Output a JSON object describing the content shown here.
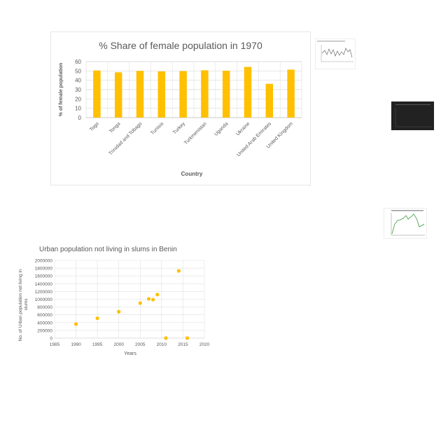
{
  "chart_data": [
    {
      "type": "bar",
      "title": "% Share of female population in 1970",
      "xlabel": "Country",
      "ylabel": "% of female population",
      "ylim": [
        0,
        60
      ],
      "yticks": [
        0,
        10,
        20,
        30,
        40,
        50,
        60
      ],
      "grid": true,
      "categories": [
        "Togo",
        "Tonga",
        "Trinidad and Tobago",
        "Tunisia",
        "Turkey",
        "Turkmenistan",
        "Uganda",
        "Ukraine",
        "United Arab Emirates",
        "United Kingdom"
      ],
      "values": [
        50.5,
        48.5,
        50,
        49.5,
        49.8,
        50.7,
        50.2,
        54.3,
        36.2,
        51.4
      ],
      "bar_color": "#FFC000"
    },
    {
      "type": "scatter",
      "title": "Urban population not living in slums in Benin",
      "xlabel": "Years",
      "ylabel": "No. of Urban population not living in slums",
      "xlim": [
        1985,
        2020
      ],
      "xticks": [
        1985,
        1990,
        1995,
        2000,
        2005,
        2010,
        2015,
        2020
      ],
      "ylim": [
        0,
        2000000
      ],
      "yticks": [
        0,
        200000,
        400000,
        600000,
        800000,
        1000000,
        1200000,
        1400000,
        1600000,
        1800000,
        2000000
      ],
      "grid": true,
      "x": [
        1990,
        1995,
        2000,
        2005,
        2007,
        2008,
        2009,
        2011,
        2014,
        2016
      ],
      "y": [
        360000,
        510000,
        680000,
        900000,
        1010000,
        990000,
        1120000,
        0,
        1730000,
        0
      ],
      "marker_color": "#FFC000"
    }
  ]
}
